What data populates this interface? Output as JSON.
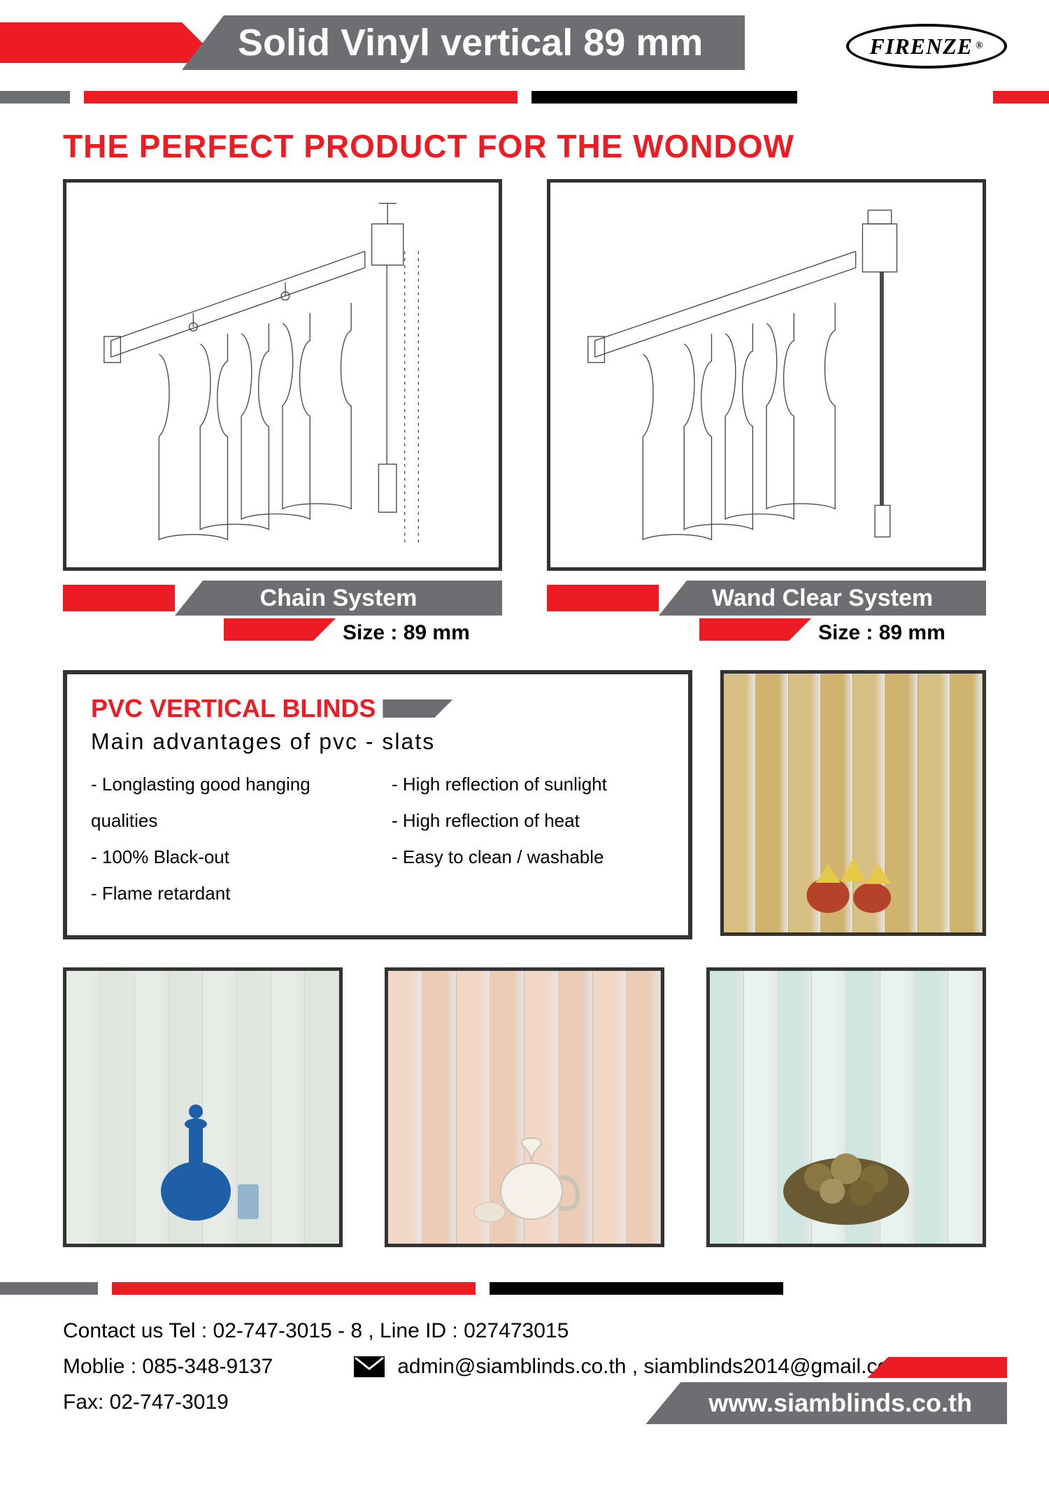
{
  "colors": {
    "red": "#ed1c24",
    "grey": "#6d6e71",
    "black": "#000000",
    "white": "#ffffff",
    "frame": "#333333"
  },
  "header": {
    "title": "Solid Vinyl vertical 89 mm",
    "brand": "FIRENZE"
  },
  "section_title": "THE PERFECT PRODUCT FOR THE WONDOW",
  "diagrams": [
    {
      "label": "Chain System",
      "size": "Size : 89 mm"
    },
    {
      "label": "Wand Clear System",
      "size": "Size : 89 mm"
    }
  ],
  "pvc": {
    "title": "PVC VERTICAL BLINDS",
    "subtitle": "Main advantages of  pvc - slats",
    "advantages_left": [
      "Longlasting good hanging qualities",
      "100% Black-out",
      "Flame retardant"
    ],
    "advantages_right": [
      "High reflection of sunlight",
      "High reflection of heat",
      "Easy to clean / washable"
    ]
  },
  "photos": {
    "top_right": {
      "bg_colors": [
        "#d8c084",
        "#cfb36e",
        "#d8c084",
        "#cfb36e",
        "#d8c084",
        "#cfb36e",
        "#d8c084",
        "#cfb36e"
      ],
      "prop": "crown"
    },
    "bottom": [
      {
        "bg_colors": [
          "#e7ece6",
          "#dfe6dd",
          "#e7ece6",
          "#dfe6dd",
          "#e7ece6",
          "#dfe6dd",
          "#e7ece6",
          "#dfe6dd"
        ],
        "prop": "blue-vase"
      },
      {
        "bg_colors": [
          "#f2d7c6",
          "#eccbb7",
          "#f2d7c6",
          "#eccbb7",
          "#f2d7c6",
          "#eccbb7",
          "#f2d7c6",
          "#eccbb7"
        ],
        "prop": "white-jug"
      },
      {
        "bg_colors": [
          "#cfe7e0",
          "#e6f3ef",
          "#cfe7e0",
          "#e6f3ef",
          "#cfe7e0",
          "#e6f3ef",
          "#cfe7e0",
          "#e6f3ef"
        ],
        "prop": "flowers"
      }
    ]
  },
  "footer": {
    "contact_line": "Contact us Tel : 02-747-3015 - 8 , Line ID : 027473015",
    "mobile": "Moblie : 085-348-9137",
    "emails": "admin@siamblinds.co.th , siamblinds2014@gmail.com",
    "fax": "Fax: 02-747-3019",
    "url": "www.siamblinds.co.th"
  }
}
